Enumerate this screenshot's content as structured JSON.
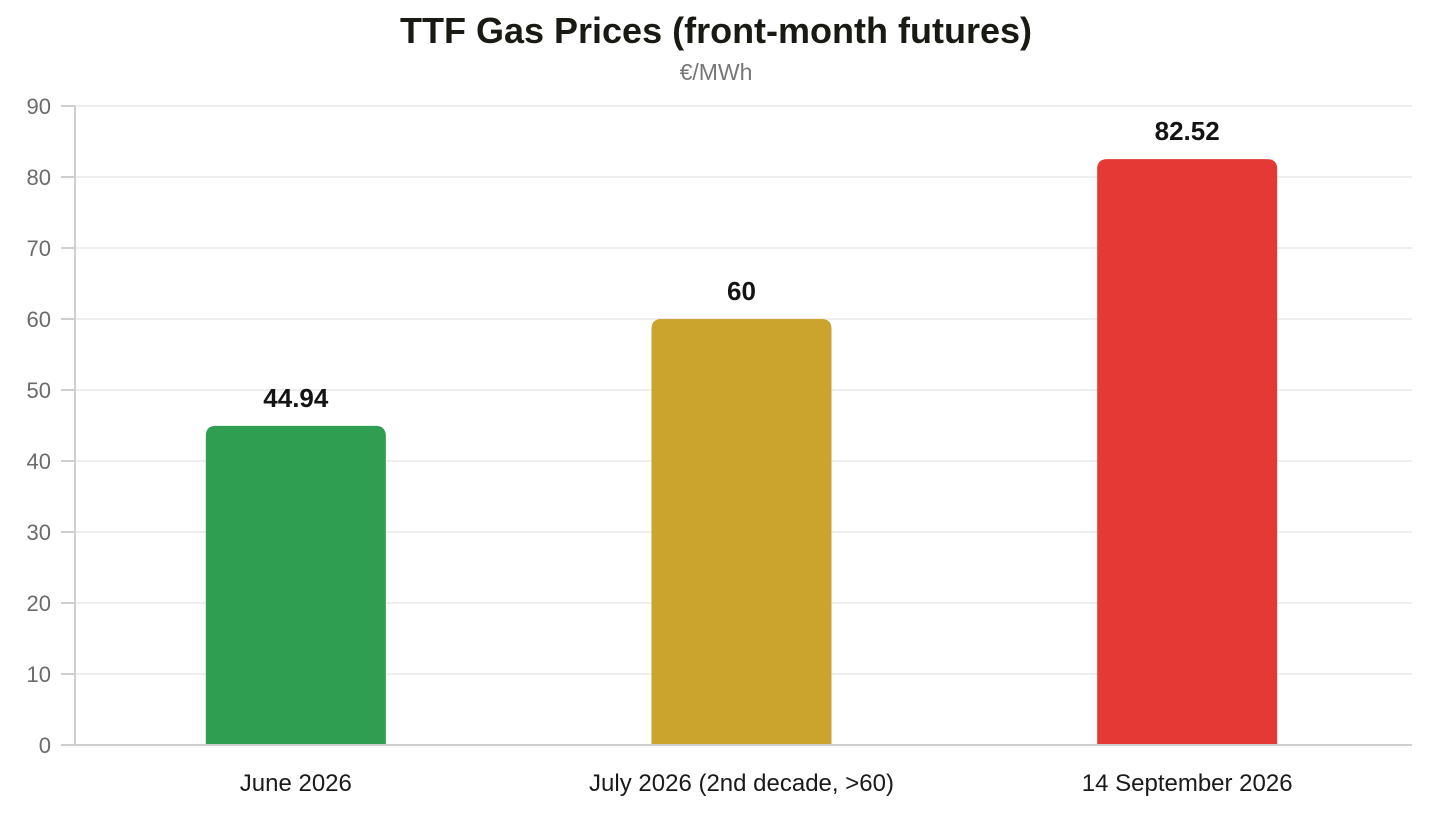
{
  "chart_data": {
    "type": "bar",
    "title": "TTF Gas Prices (front-month futures)",
    "subtitle": "€/MWh",
    "categories": [
      "June 2026",
      "July 2026 (2nd decade, >60)",
      "14 September 2026"
    ],
    "values": [
      44.94,
      60,
      82.52
    ],
    "data_labels": [
      "44.94",
      "60",
      "82.52"
    ],
    "colors": [
      "#2f9e50",
      "#cba42e",
      "#e53935"
    ],
    "ylim": [
      0,
      90
    ],
    "yticks": [
      0,
      10,
      20,
      30,
      40,
      50,
      60,
      70,
      80,
      90
    ],
    "grid": true,
    "legend": "none",
    "xlabel": "",
    "ylabel": ""
  }
}
